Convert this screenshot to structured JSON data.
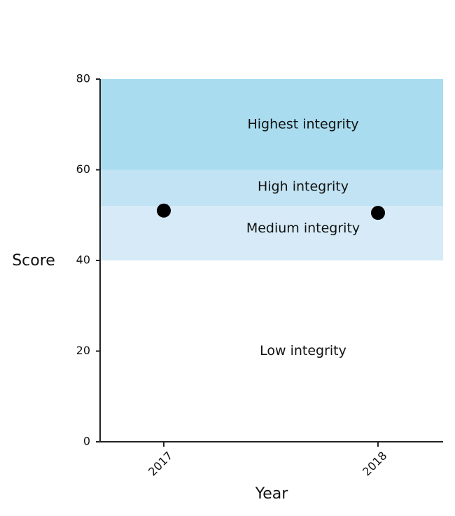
{
  "chart_data": {
    "type": "scatter",
    "title": "",
    "xlabel": "Year",
    "ylabel": "Score",
    "ylim": [
      0,
      80
    ],
    "yticks": [
      0,
      20,
      40,
      60,
      80
    ],
    "categories": [
      "2017",
      "2018"
    ],
    "values": [
      51,
      50.5
    ],
    "grid": false,
    "bands": [
      {
        "label": "Low integrity",
        "from": 0,
        "to": 40,
        "color": "#ffffff"
      },
      {
        "label": "Medium integrity",
        "from": 40,
        "to": 52,
        "color": "#d6ebf7"
      },
      {
        "label": "High integrity",
        "from": 52,
        "to": 60,
        "color": "#c2e3f3"
      },
      {
        "label": "Highest integrity",
        "from": 60,
        "to": 80,
        "color": "#a9dcef"
      }
    ],
    "marker_color": "#000000"
  }
}
